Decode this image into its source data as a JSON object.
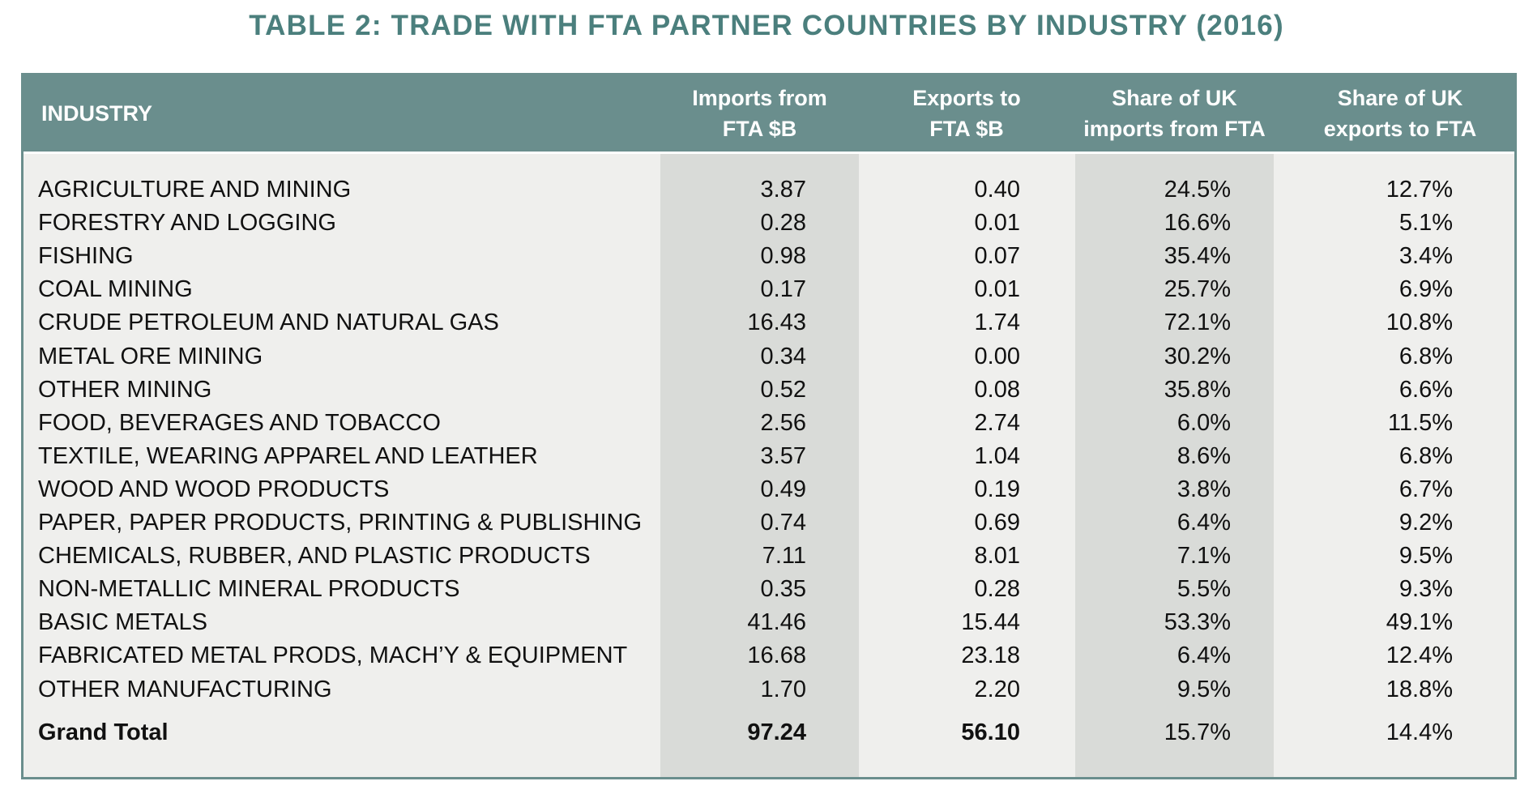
{
  "title": "TABLE 2: TRADE WITH FTA PARTNER COUNTRIES BY INDUSTRY (2016)",
  "colors": {
    "header_bg": "#6a8e8d",
    "title": "#4b7f7d",
    "body_bg": "#efefed",
    "shaded_column": "#d9dbd8"
  },
  "table": {
    "headers": {
      "industry": "INDUSTRY",
      "imports_line1": "Imports from",
      "imports_line2": "FTA $B",
      "exports_line1": "Exports to",
      "exports_line2": "FTA $B",
      "share_imports_line1": "Share of UK",
      "share_imports_line2": "imports from FTA",
      "share_exports_line1": "Share of UK",
      "share_exports_line2": "exports to FTA"
    },
    "rows": [
      {
        "industry": "AGRICULTURE AND MINING",
        "imports": "3.87",
        "exports": "0.40",
        "share_imports": "24.5%",
        "share_exports": "12.7%"
      },
      {
        "industry": "FORESTRY AND LOGGING",
        "imports": "0.28",
        "exports": "0.01",
        "share_imports": "16.6%",
        "share_exports": "5.1%"
      },
      {
        "industry": "FISHING",
        "imports": "0.98",
        "exports": "0.07",
        "share_imports": "35.4%",
        "share_exports": "3.4%"
      },
      {
        "industry": "COAL MINING",
        "imports": "0.17",
        "exports": "0.01",
        "share_imports": "25.7%",
        "share_exports": "6.9%"
      },
      {
        "industry": "CRUDE PETROLEUM AND NATURAL GAS",
        "imports": "16.43",
        "exports": "1.74",
        "share_imports": "72.1%",
        "share_exports": "10.8%"
      },
      {
        "industry": "METAL ORE MINING",
        "imports": "0.34",
        "exports": "0.00",
        "share_imports": "30.2%",
        "share_exports": "6.8%"
      },
      {
        "industry": "OTHER MINING",
        "imports": "0.52",
        "exports": "0.08",
        "share_imports": "35.8%",
        "share_exports": "6.6%"
      },
      {
        "industry": "FOOD, BEVERAGES AND TOBACCO",
        "imports": "2.56",
        "exports": "2.74",
        "share_imports": "6.0%",
        "share_exports": "11.5%"
      },
      {
        "industry": "TEXTILE, WEARING APPAREL AND LEATHER",
        "imports": "3.57",
        "exports": "1.04",
        "share_imports": "8.6%",
        "share_exports": "6.8%"
      },
      {
        "industry": "WOOD AND WOOD PRODUCTS",
        "imports": "0.49",
        "exports": "0.19",
        "share_imports": "3.8%",
        "share_exports": "6.7%"
      },
      {
        "industry": "PAPER, PAPER PRODUCTS, PRINTING & PUBLISHING",
        "imports": "0.74",
        "exports": "0.69",
        "share_imports": "6.4%",
        "share_exports": "9.2%"
      },
      {
        "industry": "CHEMICALS, RUBBER, AND PLASTIC PRODUCTS",
        "imports": "7.11",
        "exports": "8.01",
        "share_imports": "7.1%",
        "share_exports": "9.5%"
      },
      {
        "industry": "NON-METALLIC MINERAL PRODUCTS",
        "imports": "0.35",
        "exports": "0.28",
        "share_imports": "5.5%",
        "share_exports": "9.3%"
      },
      {
        "industry": "BASIC METALS",
        "imports": "41.46",
        "exports": "15.44",
        "share_imports": "53.3%",
        "share_exports": "49.1%"
      },
      {
        "industry": "FABRICATED METAL PRODS, MACH’Y & EQUIPMENT",
        "imports": "16.68",
        "exports": "23.18",
        "share_imports": "6.4%",
        "share_exports": "12.4%"
      },
      {
        "industry": "OTHER MANUFACTURING",
        "imports": "1.70",
        "exports": "2.20",
        "share_imports": "9.5%",
        "share_exports": "18.8%"
      }
    ],
    "total": {
      "industry": "Grand Total",
      "imports": "97.24",
      "exports": "56.10",
      "share_imports": "15.7%",
      "share_exports": "14.4%"
    }
  }
}
